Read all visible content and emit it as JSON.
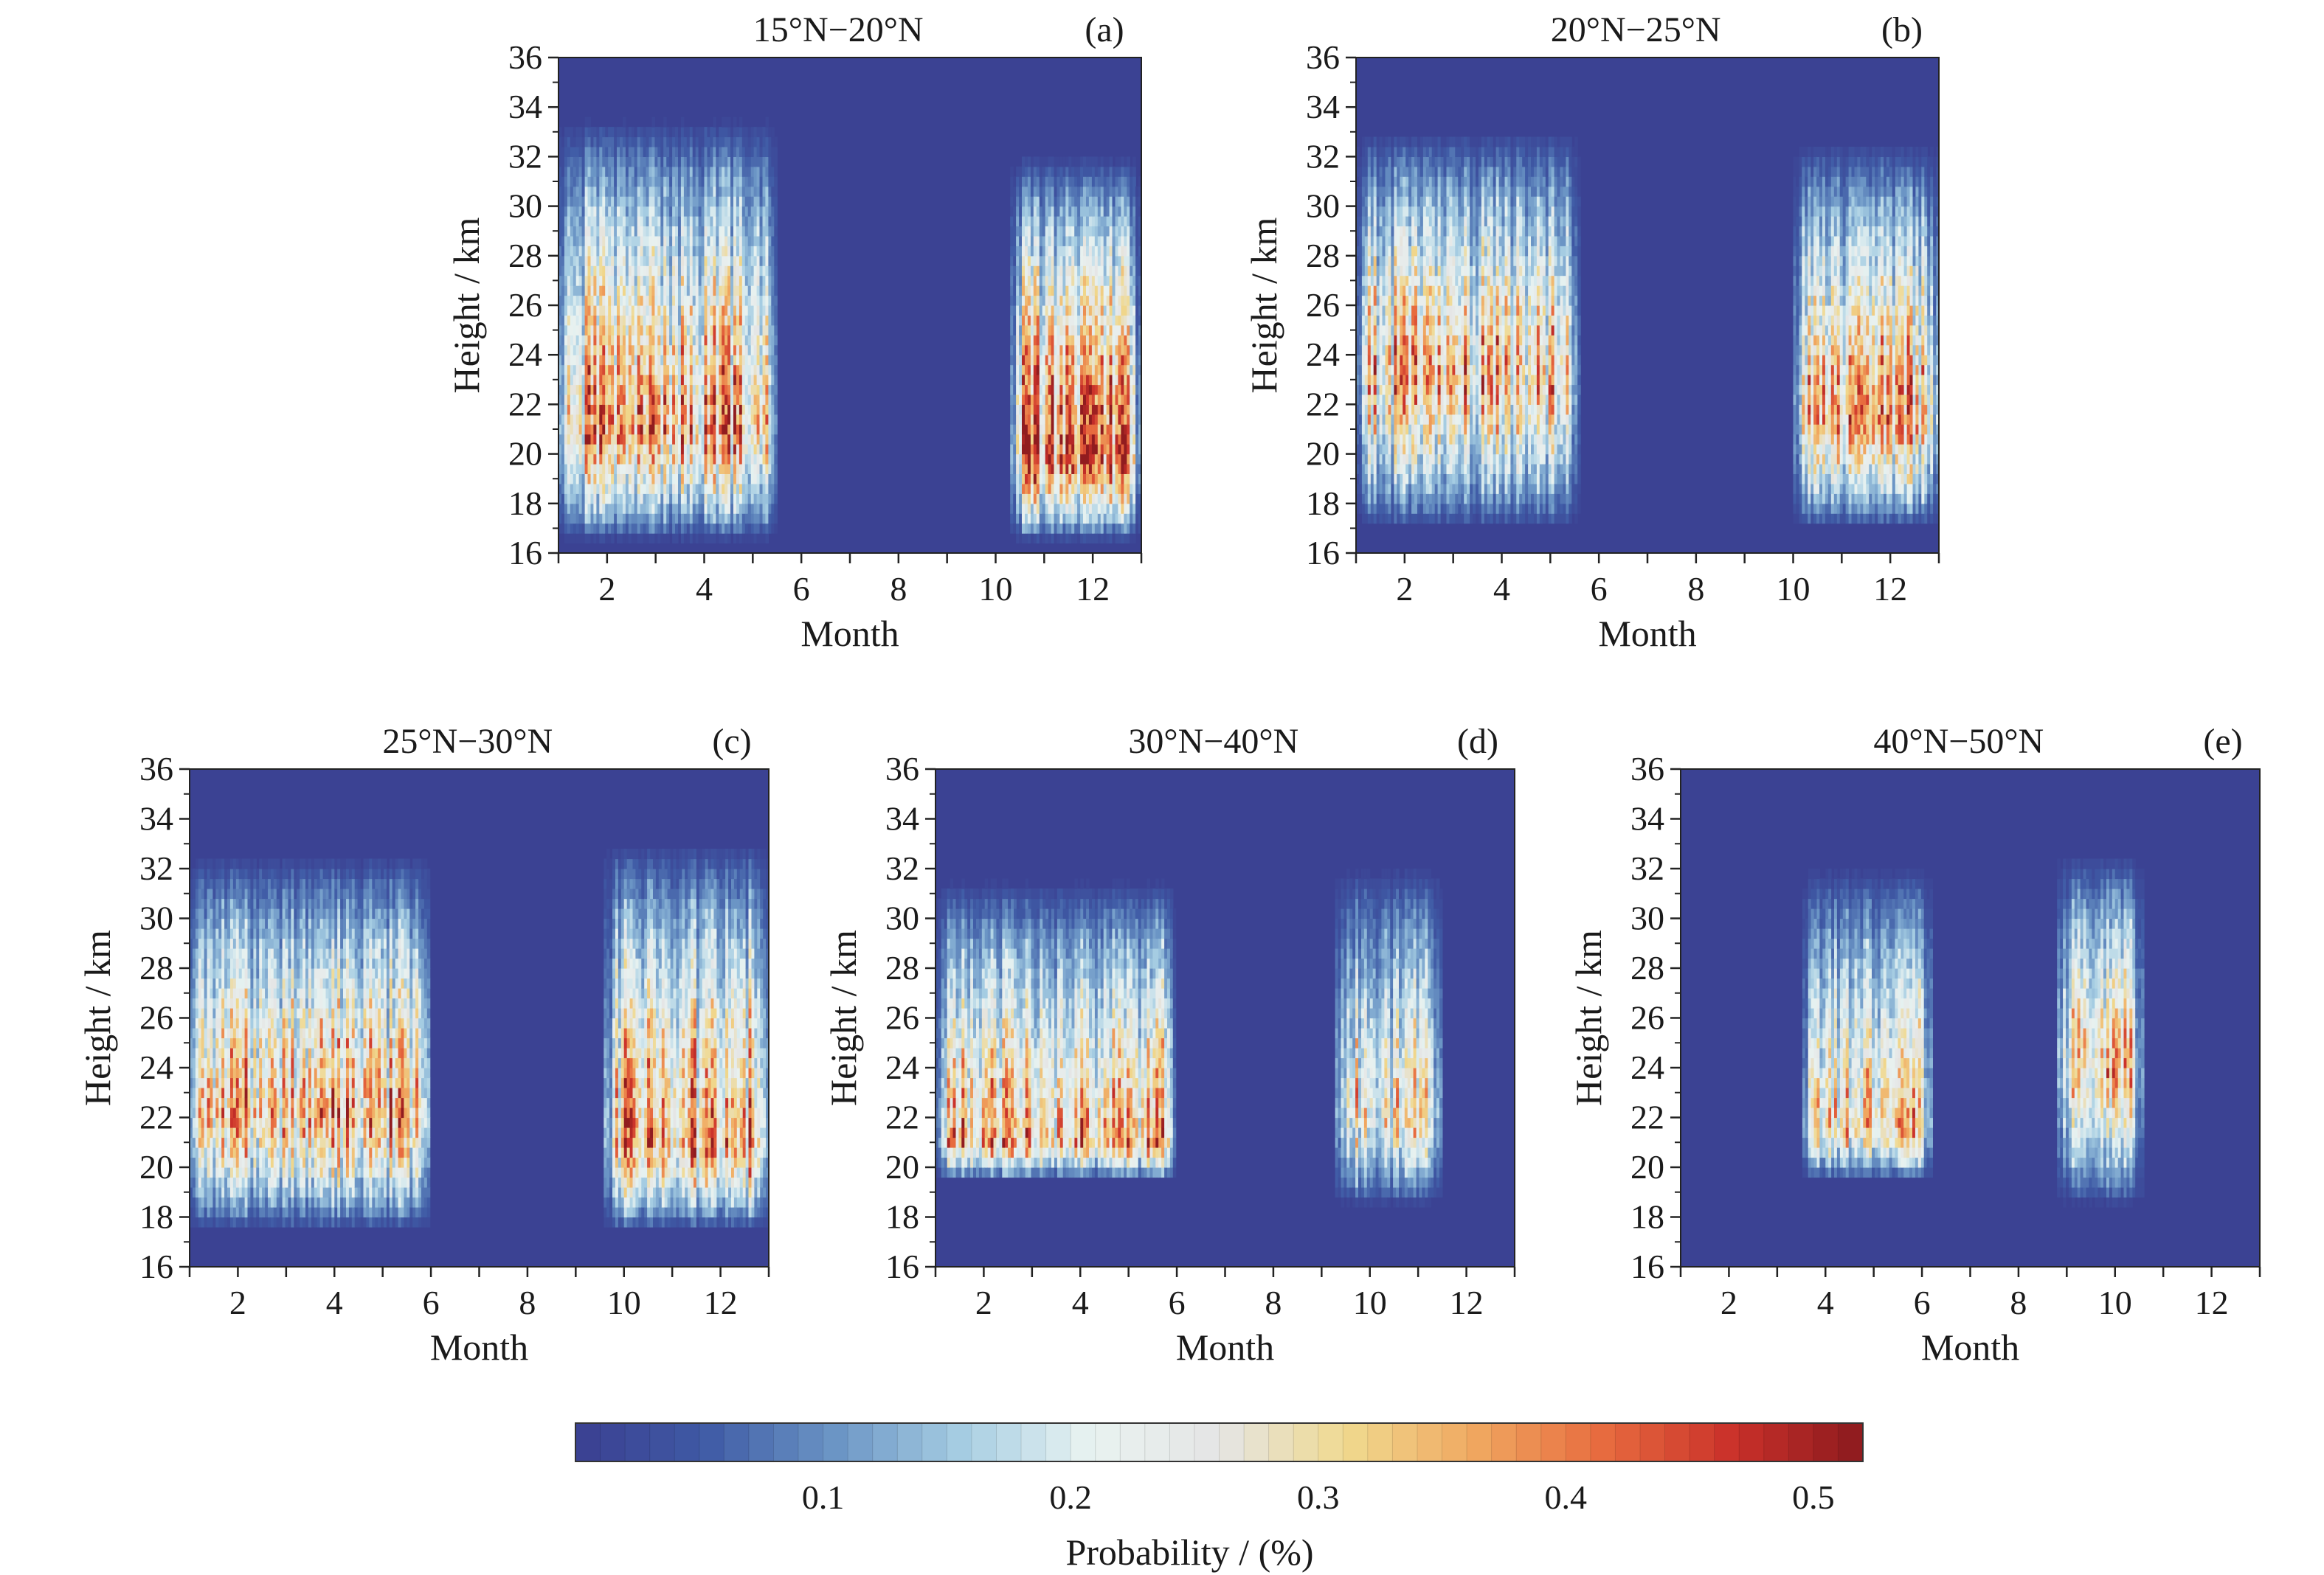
{
  "figure": {
    "colorbar": {
      "title": "Probability / (%)",
      "tick_values": [
        0.1,
        0.2,
        0.3,
        0.4,
        0.5
      ],
      "tick_labels": [
        "0.1",
        "0.2",
        "0.3",
        "0.4",
        "0.5"
      ],
      "range": [
        0,
        0.52
      ],
      "levels": 52,
      "colors": [
        "#3b3f91",
        "#3f5aa5",
        "#6a94c4",
        "#a6cde3",
        "#e9f3f1",
        "#e5e5e5",
        "#f0d98e",
        "#f0a760",
        "#e76a3e",
        "#c9302a",
        "#8b1a1e"
      ]
    }
  },
  "chart_data": [
    {
      "type": "heatmap",
      "title": "15°N−20°N",
      "panel_letter": "(a)",
      "xlabel": "Month",
      "ylabel": "Height / km",
      "xlim": [
        1,
        13
      ],
      "ylim": [
        16,
        36
      ],
      "x_ticks": [
        2,
        4,
        6,
        8,
        10,
        12
      ],
      "y_ticks": [
        16,
        18,
        20,
        22,
        24,
        26,
        28,
        30,
        32,
        34,
        36
      ],
      "active_periods": [
        {
          "month_start": 1,
          "month_end": 5.5,
          "height_bottom": 16.5,
          "height_top": 33.5,
          "peak_height": 21,
          "peak_probability": 0.35
        },
        {
          "month_start": 10.3,
          "month_end": 13,
          "height_bottom": 16.5,
          "height_top": 32,
          "peak_height": 20,
          "peak_probability": 0.4
        }
      ]
    },
    {
      "type": "heatmap",
      "title": "20°N−25°N",
      "panel_letter": "(b)",
      "xlabel": "Month",
      "ylabel": "Height / km",
      "xlim": [
        1,
        13
      ],
      "ylim": [
        16,
        36
      ],
      "x_ticks": [
        2,
        4,
        6,
        8,
        10,
        12
      ],
      "y_ticks": [
        16,
        18,
        20,
        22,
        24,
        26,
        28,
        30,
        32,
        34,
        36
      ],
      "active_periods": [
        {
          "month_start": 1,
          "month_end": 5.6,
          "height_bottom": 17,
          "height_top": 33,
          "peak_height": 23,
          "peak_probability": 0.32
        },
        {
          "month_start": 10,
          "month_end": 13,
          "height_bottom": 17,
          "height_top": 32.5,
          "peak_height": 21.5,
          "peak_probability": 0.34
        }
      ]
    },
    {
      "type": "heatmap",
      "title": "25°N−30°N",
      "panel_letter": "(c)",
      "xlabel": "Month",
      "ylabel": "Height / km",
      "xlim": [
        1,
        13
      ],
      "ylim": [
        16,
        36
      ],
      "x_ticks": [
        2,
        4,
        6,
        8,
        10,
        12
      ],
      "y_ticks": [
        16,
        18,
        20,
        22,
        24,
        26,
        28,
        30,
        32,
        34,
        36
      ],
      "active_periods": [
        {
          "month_start": 1,
          "month_end": 6,
          "height_bottom": 17.5,
          "height_top": 32.5,
          "peak_height": 22,
          "peak_probability": 0.34
        },
        {
          "month_start": 9.6,
          "month_end": 13,
          "height_bottom": 17.5,
          "height_top": 33,
          "peak_height": 21,
          "peak_probability": 0.36
        }
      ]
    },
    {
      "type": "heatmap",
      "title": "30°N−40°N",
      "panel_letter": "(d)",
      "xlabel": "Month",
      "ylabel": "Height / km",
      "xlim": [
        1,
        13
      ],
      "ylim": [
        16,
        36
      ],
      "x_ticks": [
        2,
        4,
        6,
        8,
        10,
        12
      ],
      "y_ticks": [
        16,
        18,
        20,
        22,
        24,
        26,
        28,
        30,
        32,
        34,
        36
      ],
      "active_periods": [
        {
          "month_start": 1,
          "month_end": 6,
          "height_bottom": 19.5,
          "height_top": 31.5,
          "peak_height": 21,
          "peak_probability": 0.34
        },
        {
          "month_start": 9.3,
          "month_end": 11.5,
          "height_bottom": 18.5,
          "height_top": 32,
          "peak_height": 22,
          "peak_probability": 0.28
        }
      ]
    },
    {
      "type": "heatmap",
      "title": "40°N−50°N",
      "panel_letter": "(e)",
      "xlabel": "Month",
      "ylabel": "Height / km",
      "xlim": [
        1,
        13
      ],
      "ylim": [
        16,
        36
      ],
      "x_ticks": [
        2,
        4,
        6,
        8,
        10,
        12
      ],
      "y_ticks": [
        16,
        18,
        20,
        22,
        24,
        26,
        28,
        30,
        32,
        34,
        36
      ],
      "active_periods": [
        {
          "month_start": 3.5,
          "month_end": 6.2,
          "height_bottom": 19.5,
          "height_top": 32,
          "peak_height": 21.5,
          "peak_probability": 0.3
        },
        {
          "month_start": 8.8,
          "month_end": 10.6,
          "height_bottom": 18.5,
          "height_top": 32.5,
          "peak_height": 24,
          "peak_probability": 0.31
        }
      ]
    }
  ]
}
